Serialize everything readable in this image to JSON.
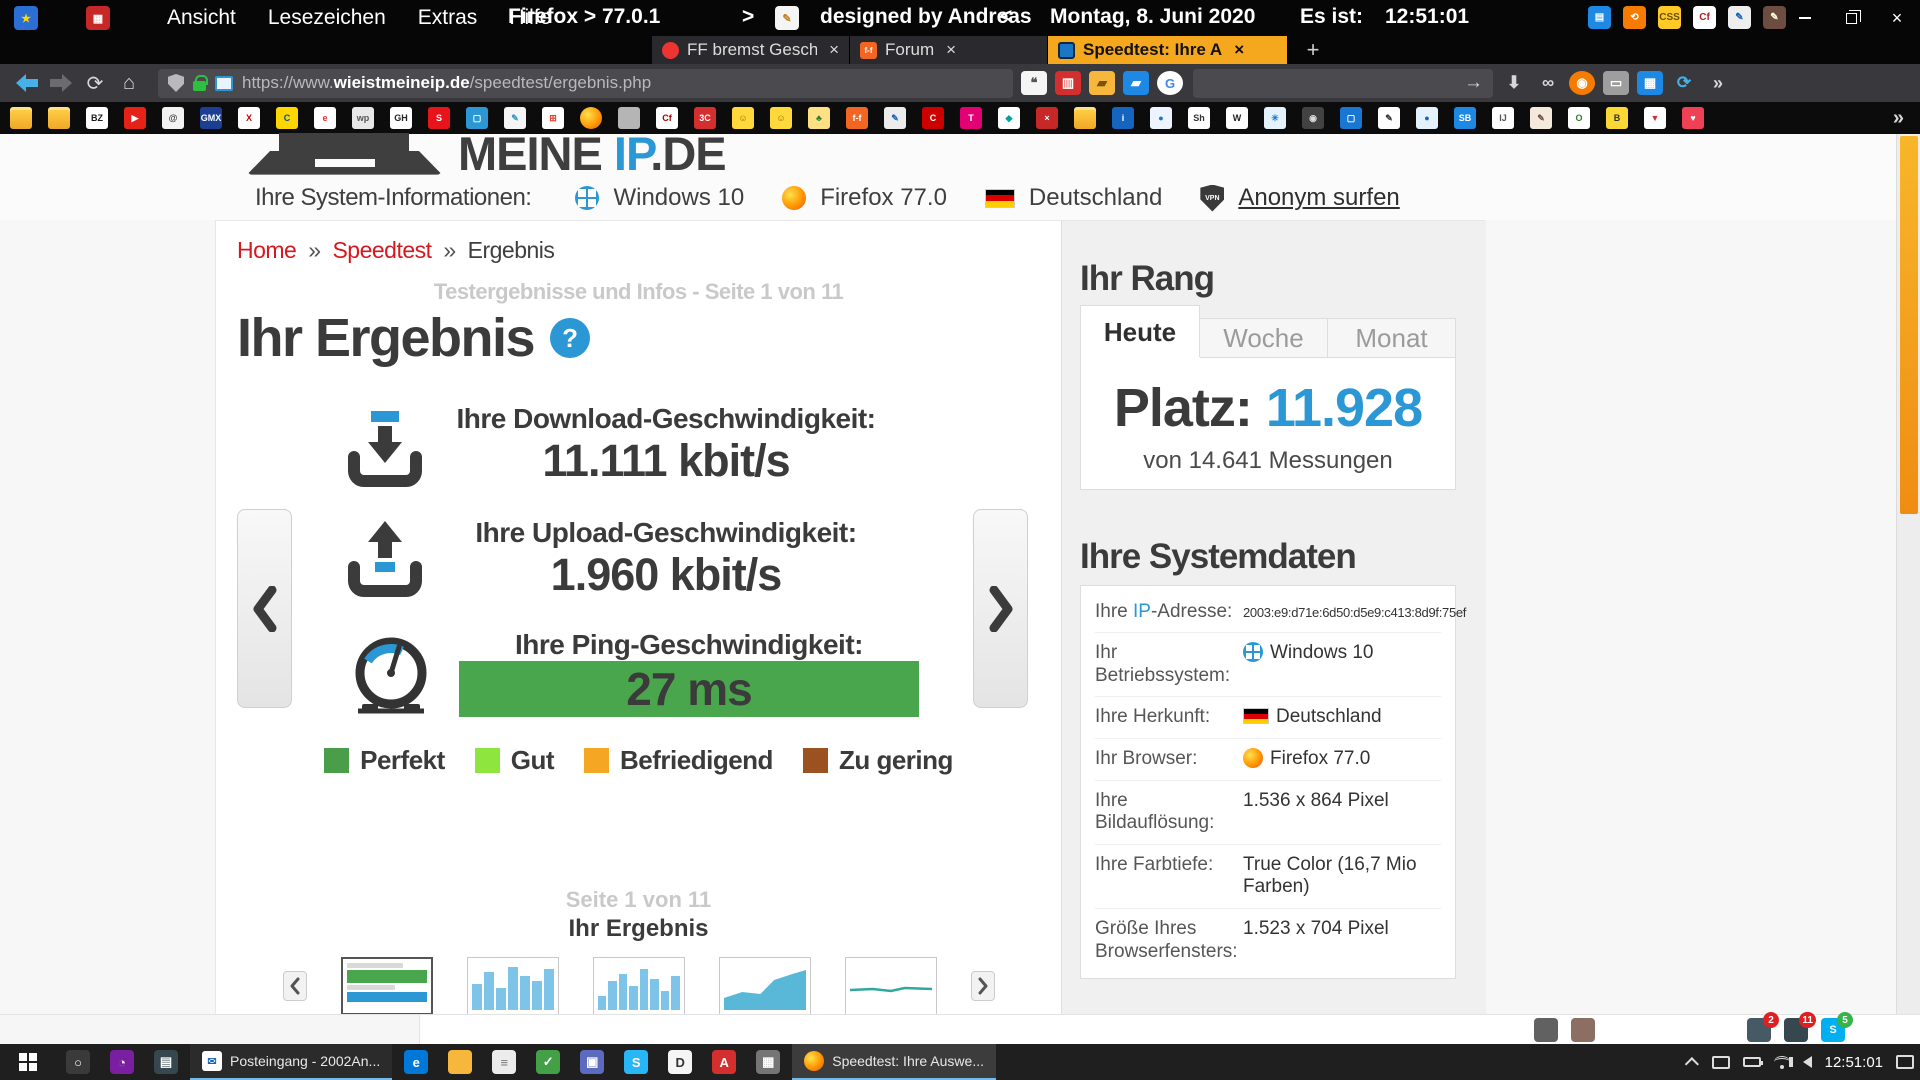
{
  "colors": {
    "accent_blue": "#2b98d5",
    "link_red": "#d6181f",
    "green_bar": "#4aa64c",
    "tab_orange": "#f5a71d",
    "scrollbar_orange": "#f2a33c"
  },
  "menubar": {
    "items": [
      "Ansicht",
      "Lesezeichen",
      "Extras",
      "Hilfe"
    ],
    "firefox_version": "Firefox > 77.0.1",
    "arrow_right": ">",
    "designed": "designed by Andreas",
    "arrow_left": "<",
    "date": "Montag, 8. Juni 2020",
    "time_label": "Es ist:",
    "time": "12:51:01",
    "close_glyph": "×"
  },
  "tabbar": {
    "tabs": [
      {
        "label": "FF bremst Geschw",
        "icon": "fire",
        "active": false
      },
      {
        "label": "Forum",
        "icon": "ff-badge",
        "active": false
      },
      {
        "label": "Speedtest: Ihre A",
        "icon": "monitor",
        "active": true
      }
    ],
    "close_glyph": "×",
    "new_tab": "+"
  },
  "navbar": {
    "url_scheme": "https://www.",
    "url_domain": "wieistmeineip.de",
    "url_path": "/speedtest/ergebnis.php",
    "go_arrow": "→",
    "overflow_glyph": "»"
  },
  "bookmarks": [
    {
      "n": "folder",
      "g": ""
    },
    {
      "n": "folder",
      "g": ""
    },
    {
      "n": "bz-logo",
      "g": "BZ",
      "bg": "#ffffff",
      "fg": "#1a1a1a"
    },
    {
      "n": "youtube",
      "g": "▶",
      "bg": "#e62117",
      "fg": "#ffffff"
    },
    {
      "n": "at-sign",
      "g": "@",
      "bg": "#f2f2f2",
      "fg": "#444444"
    },
    {
      "n": "gmx",
      "g": "GMX",
      "bg": "#1c3f94",
      "fg": "#ffffff"
    },
    {
      "n": "x-logo",
      "g": "X",
      "bg": "#ffffff",
      "fg": "#cc0000"
    },
    {
      "n": "commerzbank",
      "g": "C",
      "bg": "#ffd600",
      "fg": "#00529c"
    },
    {
      "n": "ebay",
      "g": "e",
      "bg": "#ffffff",
      "fg": "#e53238"
    },
    {
      "n": "wordpress",
      "g": "wp",
      "bg": "#e8e8e8",
      "fg": "#555555"
    },
    {
      "n": "github",
      "g": "GH",
      "bg": "#ffffff",
      "fg": "#222222"
    },
    {
      "n": "sparkasse",
      "g": "S",
      "bg": "#e8141c",
      "fg": "#ffffff"
    },
    {
      "n": "monitor",
      "g": "▢",
      "bg": "#2b98d5",
      "fg": "#ffffff"
    },
    {
      "n": "pen",
      "g": "✎",
      "bg": "#f5f5f5",
      "fg": "#2b98d5"
    },
    {
      "n": "microsoft",
      "g": "⊞",
      "bg": "#ffffff",
      "fg": "#e23e2d"
    },
    {
      "n": "firefox",
      "g": ""
    },
    {
      "n": "ball-grey",
      "g": "",
      "bg": "#b5b5b5",
      "fg": "#ffffff"
    },
    {
      "n": "cf-logo",
      "g": "Cf",
      "bg": "#ffffff",
      "fg": "#aa0000"
    },
    {
      "n": "red-badge",
      "g": "3C",
      "bg": "#d32f2f",
      "fg": "#ffffff"
    },
    {
      "n": "smiley",
      "g": "☺",
      "bg": "#ffd93b",
      "fg": "#8a6d00"
    },
    {
      "n": "smiley",
      "g": "☺",
      "bg": "#ffd93b",
      "fg": "#8a6d00"
    },
    {
      "n": "palm",
      "g": "♣",
      "bg": "#ffe082",
      "fg": "#2e7d32"
    },
    {
      "n": "ff-badge",
      "g": "f-f",
      "bg": "#f26522",
      "fg": "#ffffff"
    },
    {
      "n": "clipboard",
      "g": "✎",
      "bg": "#ececec",
      "fg": "#1565c0"
    },
    {
      "n": "c-red",
      "g": "C",
      "bg": "#cc0000",
      "fg": "#ffffff"
    },
    {
      "n": "telekom",
      "g": "T",
      "bg": "#e20074",
      "fg": "#ffffff"
    },
    {
      "n": "diamond",
      "g": "◆",
      "bg": "#ffffff",
      "fg": "#00a0a0"
    },
    {
      "n": "red-tool",
      "g": "×",
      "bg": "#c62828",
      "fg": "#ffffff"
    },
    {
      "n": "folder",
      "g": ""
    },
    {
      "n": "info-doc",
      "g": "i",
      "bg": "#1565c0",
      "fg": "#ffffff"
    },
    {
      "n": "globe",
      "g": "●",
      "bg": "#eef4ff",
      "fg": "#1976d2"
    },
    {
      "n": "sh-logo",
      "g": "Sh",
      "bg": "#ffffff",
      "fg": "#333333"
    },
    {
      "n": "wiki",
      "g": "W",
      "bg": "#ffffff",
      "fg": "#222222"
    },
    {
      "n": "snowflake",
      "g": "✳",
      "bg": "#e3f2fd",
      "fg": "#1976d2"
    },
    {
      "n": "camera",
      "g": "◉",
      "bg": "#424242",
      "fg": "#dddddd"
    },
    {
      "n": "monitor",
      "g": "▢",
      "bg": "#1976d2",
      "fg": "#ffffff"
    },
    {
      "n": "pencil",
      "g": "✎",
      "bg": "#ffffff",
      "fg": "#333333"
    },
    {
      "n": "ball-blue",
      "g": "●",
      "bg": "#e3f2fd",
      "fg": "#1565c0"
    },
    {
      "n": "sb-logo",
      "g": "SB",
      "bg": "#1e88e5",
      "fg": "#ffffff"
    },
    {
      "n": "ij-logo",
      "g": "IJ",
      "bg": "#ffffff",
      "fg": "#555555"
    },
    {
      "n": "feather",
      "g": "✎",
      "bg": "#f5e9dc",
      "fg": "#6d4c41"
    },
    {
      "n": "o-green",
      "g": "O",
      "bg": "#ffffff",
      "fg": "#2e7d32"
    },
    {
      "n": "bee",
      "g": "B",
      "bg": "#fdd835",
      "fg": "#333333"
    },
    {
      "n": "pin",
      "g": "▼",
      "bg": "#ffffff",
      "fg": "#d32f2f"
    },
    {
      "n": "pocket",
      "g": "♥",
      "bg": "#ef4056",
      "fg": "#ffffff"
    }
  ],
  "page": {
    "logo": {
      "part1": "MEINE",
      "part2": "IP",
      "part3": ".DE"
    },
    "sysinfo": {
      "label": "Ihre System-Informationen:",
      "os": "Windows 10",
      "browser": "Firefox 77.0",
      "country": "Deutschland",
      "vpn": "VPN",
      "anon_link": "Anonym surfen"
    },
    "breadcrumb": {
      "home": "Home",
      "sep": "»",
      "speedtest": "Speedtest",
      "current": "Ergebnis"
    },
    "subtitle": "Testergebnisse und Infos - Seite 1 von 11",
    "title": "Ihr Ergebnis",
    "help_glyph": "?",
    "results": {
      "download_label": "Ihre Download-Geschwindigkeit:",
      "download_value": "11.111 kbit/s",
      "upload_label": "Ihre Upload-Geschwindigkeit:",
      "upload_value": "1.960 kbit/s",
      "ping_label": "Ihre Ping-Geschwindigkeit:",
      "ping_value": "27 ms"
    },
    "legend": [
      {
        "label": "Perfekt",
        "color": "#4a9e4a"
      },
      {
        "label": "Gut",
        "color": "#8de53e"
      },
      {
        "label": "Befriedigend",
        "color": "#f5a623"
      },
      {
        "label": "Zu gering",
        "color": "#9c5220"
      }
    ],
    "carousel": {
      "page_label": "Seite 1 von 11",
      "caption": "Ihr Ergebnis"
    },
    "thumbnails": [
      {
        "type": "result",
        "selected": true
      },
      {
        "type": "bars",
        "bars": [
          55,
          80,
          45,
          90,
          70,
          60,
          85
        ]
      },
      {
        "type": "bars",
        "bars": [
          30,
          60,
          75,
          50,
          85,
          65,
          40,
          70
        ]
      },
      {
        "type": "area"
      },
      {
        "type": "line"
      }
    ],
    "rank": {
      "title": "Ihr Rang",
      "tabs": [
        {
          "label": "Heute",
          "active": true
        },
        {
          "label": "Woche",
          "active": false
        },
        {
          "label": "Monat",
          "active": false
        }
      ],
      "platz_label": "Platz:",
      "platz_value": "11.928",
      "messungen": "von 14.641 Messungen"
    },
    "sysdata": {
      "title": "Ihre Systemdaten",
      "rows": [
        {
          "pre": "Ihre ",
          "accent": "IP",
          "post": "-Adresse:",
          "value": "2003:e9:d71e:6d50:d5e9:c413:8d9f:75ef",
          "small": true
        },
        {
          "label": "Ihr Betriebssystem:",
          "value": "Windows 10",
          "icon": "windows"
        },
        {
          "label": "Ihre Herkunft:",
          "value": "Deutschland",
          "icon": "flag-de"
        },
        {
          "label": "Ihr Browser:",
          "value": "Firefox 77.0",
          "icon": "firefox"
        },
        {
          "label": "Ihre Bildauflösung:",
          "value": "1.536 x 864 Pixel"
        },
        {
          "label": "Ihre Farbtiefe:",
          "value": "True Color (16,7 Mio Farben)"
        },
        {
          "label": "Größe Ihres Browserfensters:",
          "value": "1.523 x 704 Pixel"
        }
      ]
    }
  },
  "notifications": [
    {
      "n": "printer",
      "bg": "#616161",
      "g": ""
    },
    {
      "n": "package",
      "bg": "#8d6e63",
      "g": ""
    },
    {
      "n": "app-badge-1",
      "bg": "#455a64",
      "g": "",
      "badge": "2",
      "badge_color": "#e02020"
    },
    {
      "n": "app-badge-2",
      "bg": "#37474f",
      "g": "",
      "badge": "11",
      "badge_color": "#e02020"
    },
    {
      "n": "skype",
      "bg": "#00aff0",
      "g": "S",
      "badge": "5",
      "badge_color": "#36b34a"
    }
  ],
  "taskbar": {
    "left_icons": [
      {
        "n": "search",
        "bg": "#3a3a3a",
        "g": "○"
      },
      {
        "n": "photos",
        "bg": "#7b1fa2",
        "g": "◔"
      },
      {
        "n": "film",
        "bg": "#37474f",
        "g": "▤"
      }
    ],
    "buttons": [
      {
        "label": "Posteingang - 2002An...",
        "icon": "mail",
        "active": false
      },
      {
        "label": "Speedtest: Ihre Auswe...",
        "icon": "firefox",
        "active": true
      }
    ],
    "mid_icons": [
      {
        "n": "edge",
        "bg": "#0078d7",
        "g": "e"
      },
      {
        "n": "folder",
        "bg": "#f6b73c",
        "g": ""
      },
      {
        "n": "notes",
        "bg": "#ececec",
        "g": "≡",
        "fg": "#777777"
      },
      {
        "n": "antivirus-check",
        "bg": "#43a047",
        "g": "✓"
      },
      {
        "n": "app-box",
        "bg": "#5c6bc0",
        "g": "▣"
      },
      {
        "n": "skype",
        "bg": "#29b6f6",
        "g": "S"
      },
      {
        "n": "d-app",
        "bg": "#f5f5f5",
        "g": "D",
        "fg": "#333333"
      },
      {
        "n": "adobe",
        "bg": "#d32f2f",
        "g": "A"
      },
      {
        "n": "app-grey",
        "bg": "#757575",
        "g": "▦"
      }
    ],
    "time": "12:51:01"
  }
}
